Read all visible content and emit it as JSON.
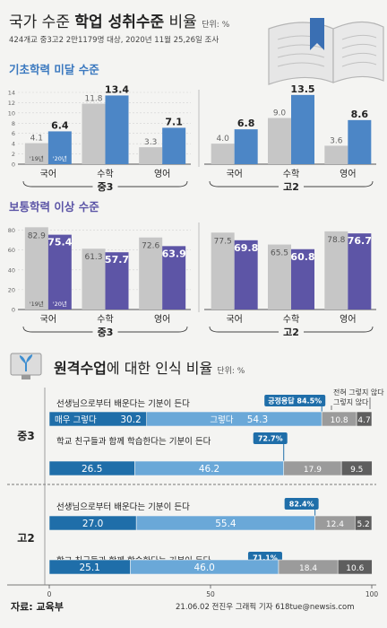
{
  "header": {
    "title_pre": "국가 수준 ",
    "title_bold": "학업 성취수준",
    "title_post": " 비율",
    "unit": "단위: %",
    "subtitle": "424개교 중3고2 2만1179명 대상, 2020년 11월 25,26일 조사"
  },
  "charts": {
    "basic_title": "기초학력 미달 수준",
    "normal_title": "보통학력 이상 수준",
    "subjects": [
      "국어",
      "수학",
      "영어"
    ],
    "grades": [
      "중3",
      "고2"
    ],
    "year_labels": [
      "'19년",
      "'20년"
    ]
  },
  "remote": {
    "title_bold": "원격수업",
    "title_post": "에 대한 인식 비율",
    "unit": "단위: %",
    "legend_not_at_all": "전혀 그렇지 않다",
    "legend_not": "그렇지 않다",
    "legend_very": "매우 그렇다",
    "legend_yes": "그렇다",
    "axis_ticks": [
      "0",
      "50",
      "100"
    ],
    "groups": [
      {
        "grade": "중3",
        "rows": [
          {
            "question": "선생님으로부터 배운다는 기분이 든다",
            "badge": "긍정응답 84.5%",
            "badge_value": 84.5,
            "values": [
              30.2,
              54.3,
              10.8,
              4.7
            ]
          },
          {
            "question": "학교 친구들과 함께 학습한다는 기분이 든다",
            "badge": "72.7%",
            "badge_value": 72.7,
            "values": [
              26.5,
              46.2,
              17.9,
              9.5
            ]
          }
        ]
      },
      {
        "grade": "고2",
        "rows": [
          {
            "question": "선생님으로부터 배운다는 기분이 든다",
            "badge": "82.4%",
            "badge_value": 82.4,
            "values": [
              27.0,
              55.4,
              12.4,
              5.2
            ]
          },
          {
            "question": "학교 친구들과 함께 학습한다는 기분이 든다",
            "badge": "71.1%",
            "badge_value": 71.1,
            "values": [
              25.1,
              46.0,
              18.4,
              10.6
            ]
          }
        ]
      }
    ]
  },
  "footer": {
    "source": "자료: 교육부",
    "credit": "21.06.02 전진우 그래픽 기자 618tue@newsis.com"
  },
  "colors": {
    "gray": "#c6c6c6",
    "blue": "#4c86c6",
    "purple": "#5d55a6",
    "very": "#1f6ea9",
    "yes": "#6aa8d8",
    "not": "#9b9b9b",
    "notatall": "#5e5e5e"
  },
  "chart_data": [
    {
      "type": "bar",
      "title": "기초학력 미달 수준",
      "group": "중3",
      "categories": [
        "국어",
        "수학",
        "영어"
      ],
      "series": [
        {
          "name": "'19년",
          "values": [
            4.1,
            11.8,
            3.3
          ]
        },
        {
          "name": "'20년",
          "values": [
            6.4,
            13.4,
            7.1
          ]
        }
      ],
      "ylim": [
        0,
        14
      ],
      "yticks": [
        0,
        2,
        4,
        6,
        8,
        10,
        12,
        14
      ]
    },
    {
      "type": "bar",
      "title": "기초학력 미달 수준",
      "group": "고2",
      "categories": [
        "국어",
        "수학",
        "영어"
      ],
      "series": [
        {
          "name": "'19년",
          "values": [
            4.0,
            9.0,
            3.6
          ]
        },
        {
          "name": "'20년",
          "values": [
            6.8,
            13.5,
            8.6
          ]
        }
      ],
      "ylim": [
        0,
        14
      ]
    },
    {
      "type": "bar",
      "title": "보통학력 이상 수준",
      "group": "중3",
      "categories": [
        "국어",
        "수학",
        "영어"
      ],
      "series": [
        {
          "name": "'19년",
          "values": [
            82.9,
            61.3,
            72.6
          ]
        },
        {
          "name": "'20년",
          "values": [
            75.4,
            57.7,
            63.9
          ]
        }
      ],
      "ylim": [
        0,
        85
      ],
      "yticks": [
        0,
        20,
        40,
        60,
        80
      ]
    },
    {
      "type": "bar",
      "title": "보통학력 이상 수준",
      "group": "고2",
      "categories": [
        "국어",
        "수학",
        "영어"
      ],
      "series": [
        {
          "name": "'19년",
          "values": [
            77.5,
            65.5,
            78.8
          ]
        },
        {
          "name": "'20년",
          "values": [
            69.8,
            60.8,
            76.7
          ]
        }
      ],
      "ylim": [
        0,
        85
      ]
    },
    {
      "type": "bar",
      "title": "원격수업에 대한 인식 비율",
      "stacked": true,
      "categories": [
        "중3 선생님으로부터 배운다는 기분이 든다",
        "중3 학교 친구들과 함께 학습한다는 기분이 든다",
        "고2 선생님으로부터 배운다는 기분이 든다",
        "고2 학교 친구들과 함께 학습한다는 기분이 든다"
      ],
      "series": [
        {
          "name": "매우 그렇다",
          "values": [
            30.2,
            26.5,
            27.0,
            25.1
          ]
        },
        {
          "name": "그렇다",
          "values": [
            54.3,
            46.2,
            55.4,
            46.0
          ]
        },
        {
          "name": "그렇지 않다",
          "values": [
            10.8,
            17.9,
            12.4,
            18.4
          ]
        },
        {
          "name": "전혀 그렇지 않다",
          "values": [
            4.7,
            9.5,
            5.2,
            10.6
          ]
        }
      ],
      "xlim": [
        0,
        100
      ]
    }
  ]
}
